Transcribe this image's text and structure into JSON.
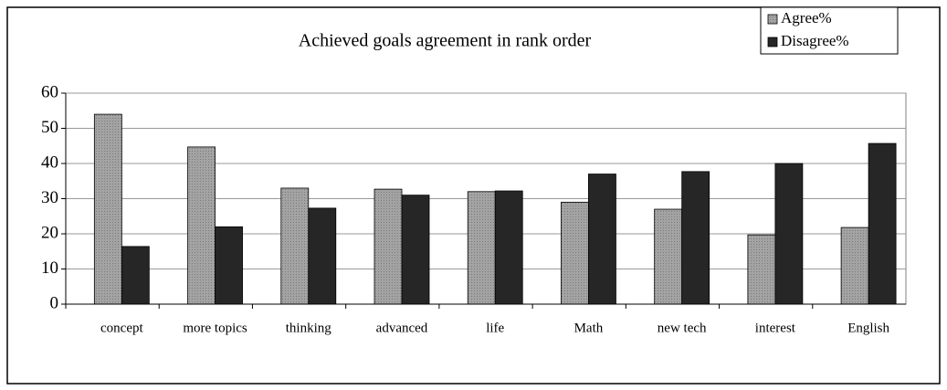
{
  "chart_data": {
    "type": "bar",
    "title": "Achieved goals agreement in rank order",
    "categories": [
      "concept",
      "more topics",
      "thinking",
      "advanced",
      "life",
      "Math",
      "new tech",
      "interest",
      "English"
    ],
    "series": [
      {
        "name": "Agree%",
        "color": "#a3a3a3",
        "values": [
          54,
          44.7,
          33,
          32.7,
          32,
          29,
          27,
          19.7,
          21.8
        ]
      },
      {
        "name": "Disagree%",
        "color": "#262626",
        "values": [
          16.4,
          22,
          27.3,
          31,
          32.2,
          37,
          37.7,
          40,
          45.7
        ]
      }
    ],
    "ylim": [
      0,
      60
    ],
    "yticks": [
      0,
      10,
      20,
      30,
      40,
      50,
      60
    ],
    "grid": true,
    "legend": "top-right"
  }
}
